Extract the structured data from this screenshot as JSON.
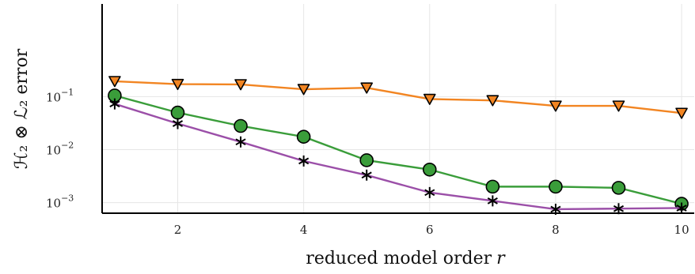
{
  "chart_data": {
    "type": "line",
    "title": "",
    "xlabel": "reduced model order",
    "xlabel_var": "r",
    "ylabel": "ℋ₂ ⊗ ℒ₂ error",
    "y_scale": "log10",
    "xlim": [
      0.8,
      10.2
    ],
    "ylim_log10": [
      -3.2,
      0.75
    ],
    "x_ticks": [
      2,
      4,
      6,
      8,
      10
    ],
    "x_tick_labels": [
      "2",
      "4",
      "6",
      "8",
      "10"
    ],
    "y_ticks_log10": [
      -3,
      -2,
      -1
    ],
    "y_tick_labels": [
      "10",
      "10",
      "10"
    ],
    "y_tick_exponents": [
      "−3",
      "−2",
      "−1"
    ],
    "grid": true,
    "legend": "none",
    "x": [
      1,
      2,
      3,
      4,
      5,
      6,
      7,
      8,
      9,
      10
    ],
    "series": [
      {
        "color": "#f28522",
        "marker": "triangle-down",
        "values": [
          0.195,
          0.172,
          0.17,
          0.138,
          0.147,
          0.09,
          0.085,
          0.067,
          0.067,
          0.049
        ]
      },
      {
        "color": "#3a9d3a",
        "marker": "circle",
        "values": [
          0.105,
          0.05,
          0.028,
          0.0175,
          0.0063,
          0.0042,
          0.002,
          0.002,
          0.0019,
          0.00095
        ]
      },
      {
        "color": "#9b4fa8",
        "marker": "star",
        "values": [
          0.073,
          0.031,
          0.014,
          0.0061,
          0.0033,
          0.00155,
          0.00108,
          0.00075,
          0.00077,
          0.00079
        ]
      }
    ]
  }
}
